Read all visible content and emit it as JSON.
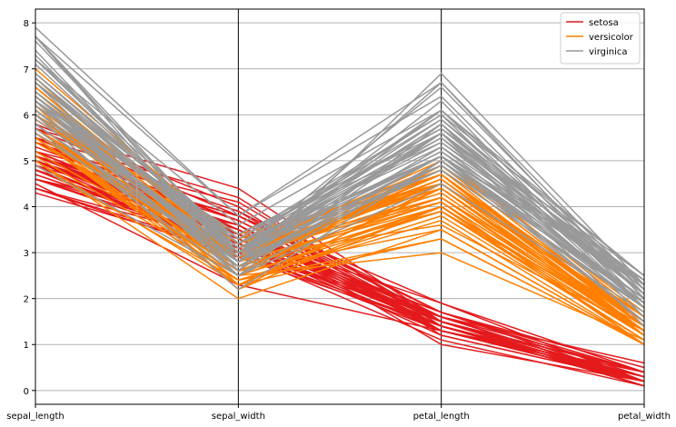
{
  "chart_data": {
    "type": "parallel_coordinates",
    "title": "",
    "xlabel": "",
    "ylabel": "",
    "dimensions": [
      "sepal_length",
      "sepal_width",
      "petal_length",
      "petal_width"
    ],
    "ylim": [
      -0.3,
      8.3
    ],
    "y_ticks": [
      "0",
      "1",
      "2",
      "3",
      "4",
      "5",
      "6",
      "7",
      "8"
    ],
    "grid": true,
    "legend_position": "top-right",
    "series": [
      {
        "name": "setosa",
        "color": "#e41a1c",
        "rows": [
          [
            5.1,
            3.5,
            1.4,
            0.2
          ],
          [
            4.9,
            3.0,
            1.4,
            0.2
          ],
          [
            4.7,
            3.2,
            1.3,
            0.2
          ],
          [
            4.6,
            3.1,
            1.5,
            0.2
          ],
          [
            5.0,
            3.6,
            1.4,
            0.2
          ],
          [
            5.4,
            3.9,
            1.7,
            0.4
          ],
          [
            4.6,
            3.4,
            1.4,
            0.3
          ],
          [
            5.0,
            3.4,
            1.5,
            0.2
          ],
          [
            4.4,
            2.9,
            1.4,
            0.2
          ],
          [
            4.9,
            3.1,
            1.5,
            0.1
          ],
          [
            5.4,
            3.7,
            1.5,
            0.2
          ],
          [
            4.8,
            3.4,
            1.6,
            0.2
          ],
          [
            4.8,
            3.0,
            1.4,
            0.1
          ],
          [
            4.3,
            3.0,
            1.1,
            0.1
          ],
          [
            5.8,
            4.0,
            1.2,
            0.2
          ],
          [
            5.7,
            4.4,
            1.5,
            0.4
          ],
          [
            5.4,
            3.9,
            1.3,
            0.4
          ],
          [
            5.1,
            3.5,
            1.4,
            0.3
          ],
          [
            5.7,
            3.8,
            1.7,
            0.3
          ],
          [
            5.1,
            3.8,
            1.5,
            0.3
          ],
          [
            5.4,
            3.4,
            1.7,
            0.2
          ],
          [
            5.1,
            3.7,
            1.5,
            0.4
          ],
          [
            4.6,
            3.6,
            1.0,
            0.2
          ],
          [
            5.1,
            3.3,
            1.7,
            0.5
          ],
          [
            4.8,
            3.4,
            1.9,
            0.2
          ],
          [
            5.0,
            3.0,
            1.6,
            0.2
          ],
          [
            5.0,
            3.4,
            1.6,
            0.4
          ],
          [
            5.2,
            3.5,
            1.5,
            0.2
          ],
          [
            5.2,
            3.4,
            1.4,
            0.2
          ],
          [
            4.7,
            3.2,
            1.6,
            0.2
          ],
          [
            4.8,
            3.1,
            1.6,
            0.2
          ],
          [
            5.4,
            3.4,
            1.5,
            0.4
          ],
          [
            5.2,
            4.1,
            1.5,
            0.1
          ],
          [
            5.5,
            4.2,
            1.4,
            0.2
          ],
          [
            4.9,
            3.1,
            1.5,
            0.2
          ],
          [
            5.0,
            3.2,
            1.2,
            0.2
          ],
          [
            5.5,
            3.5,
            1.3,
            0.2
          ],
          [
            4.9,
            3.6,
            1.4,
            0.1
          ],
          [
            4.4,
            3.0,
            1.3,
            0.2
          ],
          [
            5.1,
            3.4,
            1.5,
            0.2
          ],
          [
            5.0,
            3.5,
            1.3,
            0.3
          ],
          [
            4.5,
            2.3,
            1.3,
            0.3
          ],
          [
            4.4,
            3.2,
            1.3,
            0.2
          ],
          [
            5.0,
            3.5,
            1.6,
            0.6
          ],
          [
            5.1,
            3.8,
            1.9,
            0.4
          ],
          [
            4.8,
            3.0,
            1.4,
            0.3
          ],
          [
            5.1,
            3.8,
            1.6,
            0.2
          ],
          [
            4.6,
            3.2,
            1.4,
            0.2
          ],
          [
            5.3,
            3.7,
            1.5,
            0.2
          ],
          [
            5.0,
            3.3,
            1.4,
            0.2
          ]
        ]
      },
      {
        "name": "versicolor",
        "color": "#ff7f00",
        "rows": [
          [
            7.0,
            3.2,
            4.7,
            1.4
          ],
          [
            6.4,
            3.2,
            4.5,
            1.5
          ],
          [
            6.9,
            3.1,
            4.9,
            1.5
          ],
          [
            5.5,
            2.3,
            4.0,
            1.3
          ],
          [
            6.5,
            2.8,
            4.6,
            1.5
          ],
          [
            5.7,
            2.8,
            4.5,
            1.3
          ],
          [
            6.3,
            3.3,
            4.7,
            1.6
          ],
          [
            4.9,
            2.4,
            3.3,
            1.0
          ],
          [
            6.6,
            2.9,
            4.6,
            1.3
          ],
          [
            5.2,
            2.7,
            3.9,
            1.4
          ],
          [
            5.0,
            2.0,
            3.5,
            1.0
          ],
          [
            5.9,
            3.0,
            4.2,
            1.5
          ],
          [
            6.0,
            2.2,
            4.0,
            1.0
          ],
          [
            6.1,
            2.9,
            4.7,
            1.4
          ],
          [
            5.6,
            2.9,
            3.6,
            1.3
          ],
          [
            6.7,
            3.1,
            4.4,
            1.4
          ],
          [
            5.6,
            3.0,
            4.5,
            1.5
          ],
          [
            5.8,
            2.7,
            4.1,
            1.0
          ],
          [
            6.2,
            2.2,
            4.5,
            1.5
          ],
          [
            5.6,
            2.5,
            3.9,
            1.1
          ],
          [
            5.9,
            3.2,
            4.8,
            1.8
          ],
          [
            6.1,
            2.8,
            4.0,
            1.3
          ],
          [
            6.3,
            2.5,
            4.9,
            1.5
          ],
          [
            6.1,
            2.8,
            4.7,
            1.2
          ],
          [
            6.4,
            2.9,
            4.3,
            1.3
          ],
          [
            6.6,
            3.0,
            4.4,
            1.4
          ],
          [
            6.8,
            2.8,
            4.8,
            1.4
          ],
          [
            6.7,
            3.0,
            5.0,
            1.7
          ],
          [
            6.0,
            2.9,
            4.5,
            1.5
          ],
          [
            5.7,
            2.6,
            3.5,
            1.0
          ],
          [
            5.5,
            2.4,
            3.8,
            1.1
          ],
          [
            5.5,
            2.4,
            3.7,
            1.0
          ],
          [
            5.8,
            2.7,
            3.9,
            1.2
          ],
          [
            6.0,
            2.7,
            5.1,
            1.6
          ],
          [
            5.4,
            3.0,
            4.5,
            1.5
          ],
          [
            6.0,
            3.4,
            4.5,
            1.6
          ],
          [
            6.7,
            3.1,
            4.7,
            1.5
          ],
          [
            6.3,
            2.3,
            4.4,
            1.3
          ],
          [
            5.6,
            3.0,
            4.1,
            1.3
          ],
          [
            5.5,
            2.5,
            4.0,
            1.3
          ],
          [
            5.5,
            2.6,
            4.4,
            1.2
          ],
          [
            6.1,
            3.0,
            4.6,
            1.4
          ],
          [
            5.8,
            2.6,
            4.0,
            1.2
          ],
          [
            5.0,
            2.3,
            3.3,
            1.0
          ],
          [
            5.6,
            2.7,
            4.2,
            1.3
          ],
          [
            5.7,
            3.0,
            4.2,
            1.2
          ],
          [
            5.7,
            2.9,
            4.2,
            1.3
          ],
          [
            6.2,
            2.9,
            4.3,
            1.3
          ],
          [
            5.1,
            2.5,
            3.0,
            1.1
          ],
          [
            5.7,
            2.8,
            4.1,
            1.3
          ]
        ]
      },
      {
        "name": "virginica",
        "color": "#999999",
        "rows": [
          [
            6.3,
            3.3,
            6.0,
            2.5
          ],
          [
            5.8,
            2.7,
            5.1,
            1.9
          ],
          [
            7.1,
            3.0,
            5.9,
            2.1
          ],
          [
            6.3,
            2.9,
            5.6,
            1.8
          ],
          [
            6.5,
            3.0,
            5.8,
            2.2
          ],
          [
            7.6,
            3.0,
            6.6,
            2.1
          ],
          [
            4.9,
            2.5,
            4.5,
            1.7
          ],
          [
            7.3,
            2.9,
            6.3,
            1.8
          ],
          [
            6.7,
            2.5,
            5.8,
            1.8
          ],
          [
            7.2,
            3.6,
            6.1,
            2.5
          ],
          [
            6.5,
            3.2,
            5.1,
            2.0
          ],
          [
            6.4,
            2.7,
            5.3,
            1.9
          ],
          [
            6.8,
            3.0,
            5.5,
            2.1
          ],
          [
            5.7,
            2.5,
            5.0,
            2.0
          ],
          [
            5.8,
            2.8,
            5.1,
            2.4
          ],
          [
            6.4,
            3.2,
            5.3,
            2.3
          ],
          [
            6.5,
            3.0,
            5.5,
            1.8
          ],
          [
            7.7,
            3.8,
            6.7,
            2.2
          ],
          [
            7.7,
            2.6,
            6.9,
            2.3
          ],
          [
            6.0,
            2.2,
            5.0,
            1.5
          ],
          [
            6.9,
            3.2,
            5.7,
            2.3
          ],
          [
            5.6,
            2.8,
            4.9,
            2.0
          ],
          [
            7.7,
            2.8,
            6.7,
            2.0
          ],
          [
            6.3,
            2.7,
            4.9,
            1.8
          ],
          [
            6.7,
            3.3,
            5.7,
            2.1
          ],
          [
            7.2,
            3.2,
            6.0,
            1.8
          ],
          [
            6.2,
            2.8,
            4.8,
            1.8
          ],
          [
            6.1,
            3.0,
            4.9,
            1.8
          ],
          [
            6.4,
            2.8,
            5.6,
            2.1
          ],
          [
            7.2,
            3.0,
            5.8,
            1.6
          ],
          [
            7.4,
            2.8,
            6.1,
            1.9
          ],
          [
            7.9,
            3.8,
            6.4,
            2.0
          ],
          [
            6.4,
            2.8,
            5.6,
            2.2
          ],
          [
            6.3,
            2.8,
            5.1,
            1.5
          ],
          [
            6.1,
            2.6,
            5.6,
            1.4
          ],
          [
            7.7,
            3.0,
            6.1,
            2.3
          ],
          [
            6.3,
            3.4,
            5.6,
            2.4
          ],
          [
            6.4,
            3.1,
            5.5,
            1.8
          ],
          [
            6.0,
            3.0,
            4.8,
            1.8
          ],
          [
            6.9,
            3.1,
            5.4,
            2.1
          ],
          [
            6.7,
            3.1,
            5.6,
            2.4
          ],
          [
            6.9,
            3.1,
            5.1,
            2.3
          ],
          [
            5.8,
            2.7,
            5.1,
            1.9
          ],
          [
            6.8,
            3.2,
            5.9,
            2.3
          ],
          [
            6.7,
            3.3,
            5.7,
            2.5
          ],
          [
            6.7,
            3.0,
            5.2,
            2.3
          ],
          [
            6.3,
            2.5,
            5.0,
            1.9
          ],
          [
            6.5,
            3.0,
            5.2,
            2.0
          ],
          [
            6.2,
            3.4,
            5.4,
            2.3
          ],
          [
            5.9,
            3.0,
            5.1,
            1.8
          ]
        ]
      }
    ]
  }
}
